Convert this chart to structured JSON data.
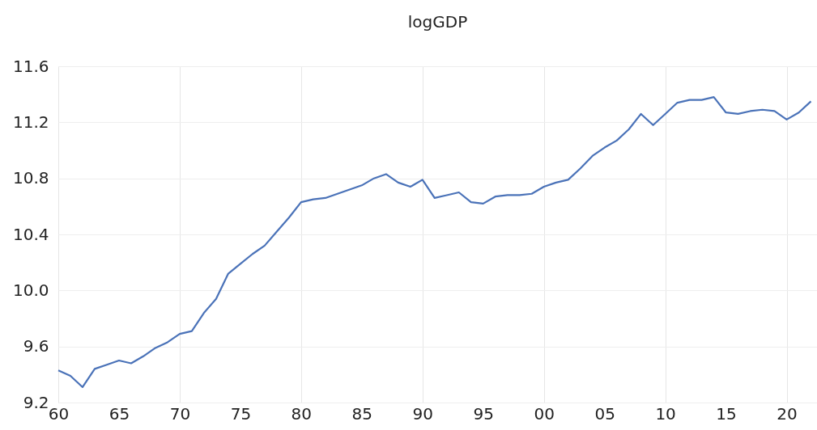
{
  "chart_data": {
    "type": "line",
    "title": "logGDP",
    "x": [
      1960,
      1961,
      1962,
      1963,
      1964,
      1965,
      1966,
      1967,
      1968,
      1969,
      1970,
      1971,
      1972,
      1973,
      1974,
      1975,
      1976,
      1977,
      1978,
      1979,
      1980,
      1981,
      1982,
      1983,
      1984,
      1985,
      1986,
      1987,
      1988,
      1989,
      1990,
      1991,
      1992,
      1993,
      1994,
      1995,
      1996,
      1997,
      1998,
      1999,
      2000,
      2001,
      2002,
      2003,
      2004,
      2005,
      2006,
      2007,
      2008,
      2009,
      2010,
      2011,
      2012,
      2013,
      2014,
      2015,
      2016,
      2017,
      2018,
      2019,
      2020,
      2021,
      2022
    ],
    "series": [
      {
        "color": "#4a72b8",
        "values": [
          9.43,
          9.39,
          9.31,
          9.44,
          9.47,
          9.5,
          9.48,
          9.53,
          9.59,
          9.63,
          9.69,
          9.71,
          9.84,
          9.94,
          10.12,
          10.19,
          10.26,
          10.32,
          10.42,
          10.52,
          10.63,
          10.65,
          10.66,
          10.69,
          10.72,
          10.75,
          10.8,
          10.83,
          10.77,
          10.74,
          10.79,
          10.66,
          10.68,
          10.7,
          10.63,
          10.62,
          10.67,
          10.68,
          10.68,
          10.69,
          10.74,
          10.77,
          10.79,
          10.87,
          10.96,
          11.02,
          11.07,
          11.15,
          11.26,
          11.18,
          11.26,
          11.34,
          11.36,
          11.36,
          11.38,
          11.27,
          11.26,
          11.28,
          11.29,
          11.28,
          11.22,
          11.27,
          11.35
        ]
      }
    ],
    "xlim": [
      1960,
      2022.5
    ],
    "xticks": [
      {
        "value": 1960,
        "label": "60"
      },
      {
        "value": 1965,
        "label": "65"
      },
      {
        "value": 1970,
        "label": "70"
      },
      {
        "value": 1975,
        "label": "75"
      },
      {
        "value": 1980,
        "label": "80"
      },
      {
        "value": 1985,
        "label": "85"
      },
      {
        "value": 1990,
        "label": "90"
      },
      {
        "value": 1995,
        "label": "95"
      },
      {
        "value": 2000,
        "label": "00"
      },
      {
        "value": 2005,
        "label": "05"
      },
      {
        "value": 2010,
        "label": "10"
      },
      {
        "value": 2015,
        "label": "15"
      },
      {
        "value": 2020,
        "label": "20"
      }
    ],
    "ylim": [
      9.2,
      11.6
    ],
    "yticks": [
      9.2,
      9.6,
      {
        "value": 10,
        "label": "10.0"
      },
      10.4,
      10.8,
      11.2,
      11.6
    ],
    "grid": true,
    "marker": "none",
    "line_style": "solid"
  }
}
